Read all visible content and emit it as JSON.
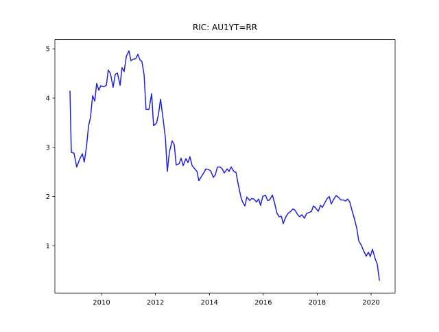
{
  "chart_data": {
    "type": "line",
    "title": "RIC: AU1YT=RR",
    "color": "#1f1fdf",
    "x": [
      2008.83,
      2008.88,
      2008.98,
      2009.08,
      2009.19,
      2009.29,
      2009.36,
      2009.44,
      2009.52,
      2009.59,
      2009.67,
      2009.75,
      2009.82,
      2009.9,
      2009.97,
      2010.08,
      2010.18,
      2010.25,
      2010.33,
      2010.43,
      2010.51,
      2010.59,
      2010.69,
      2010.76,
      2010.84,
      2010.92,
      2011.02,
      2011.09,
      2011.17,
      2011.27,
      2011.35,
      2011.42,
      2011.5,
      2011.58,
      2011.65,
      2011.76,
      2011.86,
      2011.93,
      2012.04,
      2012.11,
      2012.19,
      2012.29,
      2012.37,
      2012.44,
      2012.52,
      2012.62,
      2012.7,
      2012.77,
      2012.88,
      2012.95,
      2013.03,
      2013.13,
      2013.21,
      2013.28,
      2013.36,
      2013.46,
      2013.54,
      2013.61,
      2013.72,
      2013.79,
      2013.87,
      2013.97,
      2014.05,
      2014.15,
      2014.22,
      2014.3,
      2014.4,
      2014.48,
      2014.55,
      2014.66,
      2014.73,
      2014.81,
      2014.91,
      2014.99,
      2015.06,
      2015.17,
      2015.24,
      2015.32,
      2015.39,
      2015.5,
      2015.57,
      2015.65,
      2015.75,
      2015.83,
      2015.9,
      2015.98,
      2016.08,
      2016.16,
      2016.23,
      2016.34,
      2016.41,
      2016.51,
      2016.59,
      2016.67,
      2016.74,
      2016.84,
      2016.92,
      2017.02,
      2017.1,
      2017.18,
      2017.28,
      2017.35,
      2017.43,
      2017.53,
      2017.61,
      2017.68,
      2017.79,
      2017.86,
      2017.94,
      2018.04,
      2018.12,
      2018.19,
      2018.3,
      2018.37,
      2018.45,
      2018.52,
      2018.63,
      2018.7,
      2018.8,
      2018.88,
      2018.96,
      2019.06,
      2019.13,
      2019.21,
      2019.29,
      2019.39,
      2019.47,
      2019.54,
      2019.64,
      2019.72,
      2019.82,
      2019.9,
      2019.97,
      2020.05,
      2020.15,
      2020.23,
      2020.31
    ],
    "values": [
      4.15,
      2.9,
      2.88,
      2.6,
      2.76,
      2.87,
      2.7,
      3.0,
      3.44,
      3.6,
      4.05,
      3.94,
      4.3,
      4.16,
      4.25,
      4.23,
      4.26,
      4.57,
      4.5,
      4.22,
      4.48,
      4.51,
      4.26,
      4.62,
      4.54,
      4.85,
      4.96,
      4.76,
      4.79,
      4.8,
      4.89,
      4.78,
      4.74,
      4.47,
      3.77,
      3.77,
      4.09,
      3.44,
      3.49,
      3.66,
      3.98,
      3.55,
      3.19,
      2.51,
      2.91,
      3.13,
      3.05,
      2.64,
      2.67,
      2.78,
      2.63,
      2.77,
      2.69,
      2.81,
      2.63,
      2.56,
      2.51,
      2.32,
      2.42,
      2.48,
      2.56,
      2.55,
      2.52,
      2.39,
      2.44,
      2.6,
      2.6,
      2.56,
      2.48,
      2.56,
      2.51,
      2.6,
      2.51,
      2.49,
      2.28,
      1.99,
      1.88,
      1.81,
      1.99,
      1.92,
      1.96,
      1.95,
      1.89,
      1.95,
      1.82,
      2.0,
      2.03,
      1.92,
      1.93,
      2.03,
      1.89,
      1.66,
      1.59,
      1.6,
      1.45,
      1.59,
      1.66,
      1.7,
      1.75,
      1.72,
      1.63,
      1.59,
      1.63,
      1.56,
      1.66,
      1.67,
      1.7,
      1.81,
      1.77,
      1.7,
      1.82,
      1.78,
      1.89,
      1.96,
      2.0,
      1.85,
      1.96,
      2.02,
      1.98,
      1.93,
      1.93,
      1.91,
      1.95,
      1.89,
      1.72,
      1.53,
      1.35,
      1.1,
      1.01,
      0.9,
      0.79,
      0.87,
      0.78,
      0.93,
      0.74,
      0.62,
      0.29
    ],
    "xlim": [
      2008.27,
      2020.89
    ],
    "xticks": [
      2010,
      2012,
      2014,
      2016,
      2018,
      2020
    ],
    "ylim": [
      0.04,
      5.19
    ],
    "yticks": [
      1,
      2,
      3,
      4,
      5
    ]
  }
}
